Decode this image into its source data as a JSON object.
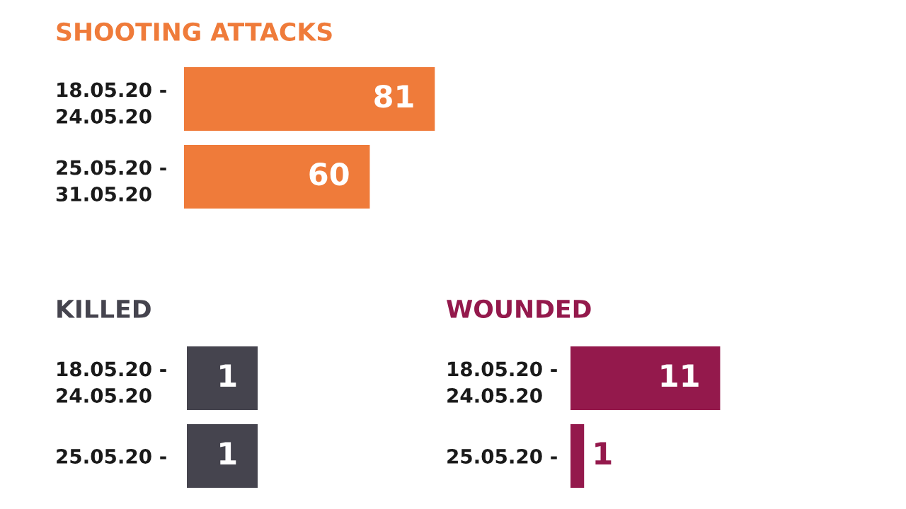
{
  "chart_data": [
    {
      "type": "bar",
      "orientation": "horizontal",
      "title": "SHOOTING ATTACKS",
      "categories": [
        "18.05.20 -\n24.05.20",
        "25.05.20 -\n31.05.20"
      ],
      "values": [
        81,
        60
      ],
      "color": "#ef7b3a",
      "tick_labels": "y",
      "data_labels": true,
      "grid": false,
      "legend": false
    },
    {
      "type": "bar",
      "orientation": "horizontal",
      "title": "KILLED",
      "categories": [
        "18.05.20 -\n24.05.20",
        "25.05.20 -"
      ],
      "values": [
        1,
        1
      ],
      "color": "#45444e",
      "tick_labels": "y",
      "data_labels": true,
      "grid": false,
      "legend": false
    },
    {
      "type": "bar",
      "orientation": "horizontal",
      "title": "WOUNDED",
      "categories": [
        "18.05.20 -\n24.05.20",
        "25.05.20 -"
      ],
      "values": [
        11,
        1
      ],
      "color": "#94194c",
      "tick_labels": "y",
      "data_labels": true,
      "grid": false,
      "legend": false
    }
  ]
}
